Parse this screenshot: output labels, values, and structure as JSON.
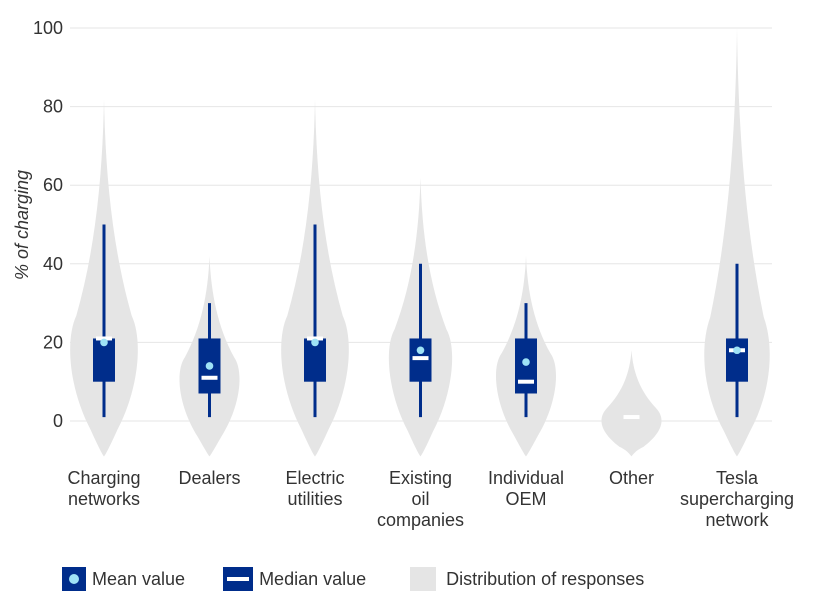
{
  "chart_data": {
    "type": "violin",
    "ylabel": "% of charging",
    "xlabel": "",
    "ylim": [
      -10,
      100
    ],
    "yticks": [
      0,
      20,
      40,
      60,
      80,
      100
    ],
    "grid": true,
    "legend_placement": "bottom",
    "categories": [
      [
        "Charging",
        "networks"
      ],
      [
        "Dealers"
      ],
      [
        "Electric",
        "utilities"
      ],
      [
        "Existing",
        "oil",
        "companies"
      ],
      [
        "Individual",
        "OEM"
      ],
      [
        "Other"
      ],
      [
        "Tesla",
        "supercharging",
        "network"
      ]
    ],
    "series": [
      {
        "whisker_low": 1,
        "whisker_high": 50,
        "q1": 10,
        "q3": 21,
        "median": 21,
        "mean": 20,
        "violin_min": -9,
        "violin_max": 82,
        "violin_peak": 22,
        "violin_width": 0.62
      },
      {
        "whisker_low": 1,
        "whisker_high": 30,
        "q1": 7,
        "q3": 21,
        "median": 11,
        "mean": 14,
        "violin_min": -9,
        "violin_max": 42,
        "violin_peak": 14,
        "violin_width": 0.55
      },
      {
        "whisker_low": 1,
        "whisker_high": 50,
        "q1": 10,
        "q3": 21,
        "median": 21,
        "mean": 20,
        "violin_min": -9,
        "violin_max": 82,
        "violin_peak": 22,
        "violin_width": 0.62
      },
      {
        "whisker_low": 1,
        "whisker_high": 40,
        "q1": 10,
        "q3": 21,
        "median": 16,
        "mean": 18,
        "violin_min": -9,
        "violin_max": 62,
        "violin_peak": 20,
        "violin_width": 0.58
      },
      {
        "whisker_low": 1,
        "whisker_high": 30,
        "q1": 7,
        "q3": 21,
        "median": 10,
        "mean": 15,
        "violin_min": -9,
        "violin_max": 42,
        "violin_peak": 15,
        "violin_width": 0.55
      },
      {
        "whisker_low": null,
        "whisker_high": null,
        "q1": null,
        "q3": null,
        "median": 1,
        "mean": null,
        "violin_min": -9,
        "violin_max": 18,
        "violin_peak": 2,
        "violin_width": 0.55
      },
      {
        "whisker_low": 1,
        "whisker_high": 40,
        "q1": 10,
        "q3": 21,
        "median": 18,
        "mean": 18,
        "violin_min": -9,
        "violin_max": 100,
        "violin_peak": 20,
        "violin_width": 0.6
      }
    ]
  },
  "legend": {
    "mean_label": "Mean value",
    "median_label": "Median value",
    "dist_label": "Distribution of responses"
  },
  "colors": {
    "box": "#002d8b",
    "mean_dot": "#9ee2f6",
    "median_bar": "#ffffff",
    "violin": "#e5e5e5",
    "grid": "#e6e6e6"
  }
}
